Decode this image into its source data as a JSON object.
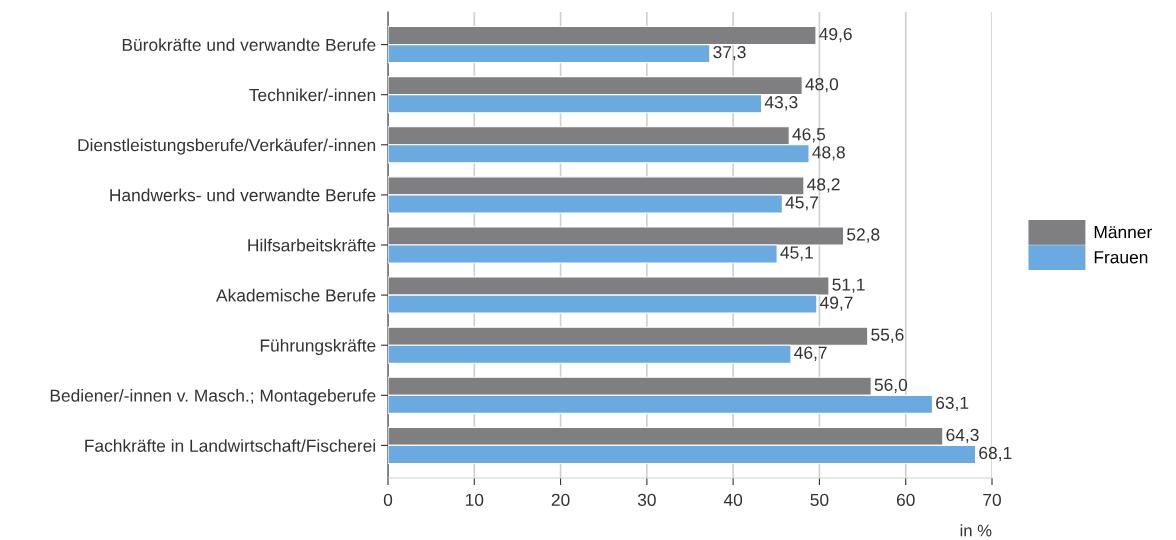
{
  "chart_data": {
    "type": "bar",
    "orientation": "horizontal",
    "categories": [
      "Bürokräfte und verwandte Berufe",
      "Techniker/-innen",
      "Dienstleistungsberufe/Verkäufer/-innen",
      "Handwerks- und verwandte Berufe",
      "Hilfsarbeitskräfte",
      "Akademische Berufe",
      "Führungskräfte",
      "Bediener/-innen v. Masch.; Montageberufe",
      "Fachkräfte in Landwirtschaft/Fischerei"
    ],
    "series": [
      {
        "name": "Männer",
        "color": "#7f7f81",
        "values": [
          49.6,
          48.0,
          46.5,
          48.2,
          52.8,
          51.1,
          55.6,
          56.0,
          64.3
        ],
        "value_labels": [
          "49,6",
          "48,0",
          "46,5",
          "48,2",
          "52,8",
          "51,1",
          "55,6",
          "56,0",
          "64,3"
        ]
      },
      {
        "name": "Frauen",
        "color": "#6aaae0",
        "values": [
          37.3,
          43.3,
          48.8,
          45.7,
          45.1,
          49.7,
          46.7,
          63.1,
          68.1
        ],
        "value_labels": [
          "37,3",
          "43,3",
          "48,8",
          "45,7",
          "45,1",
          "49,7",
          "46,7",
          "63,1",
          "68,1"
        ]
      }
    ],
    "xlabel": "in %",
    "xlim": [
      0,
      70
    ],
    "xticks": [
      0,
      10,
      20,
      30,
      40,
      50,
      60,
      70
    ],
    "grid": "x",
    "legend": "right"
  }
}
